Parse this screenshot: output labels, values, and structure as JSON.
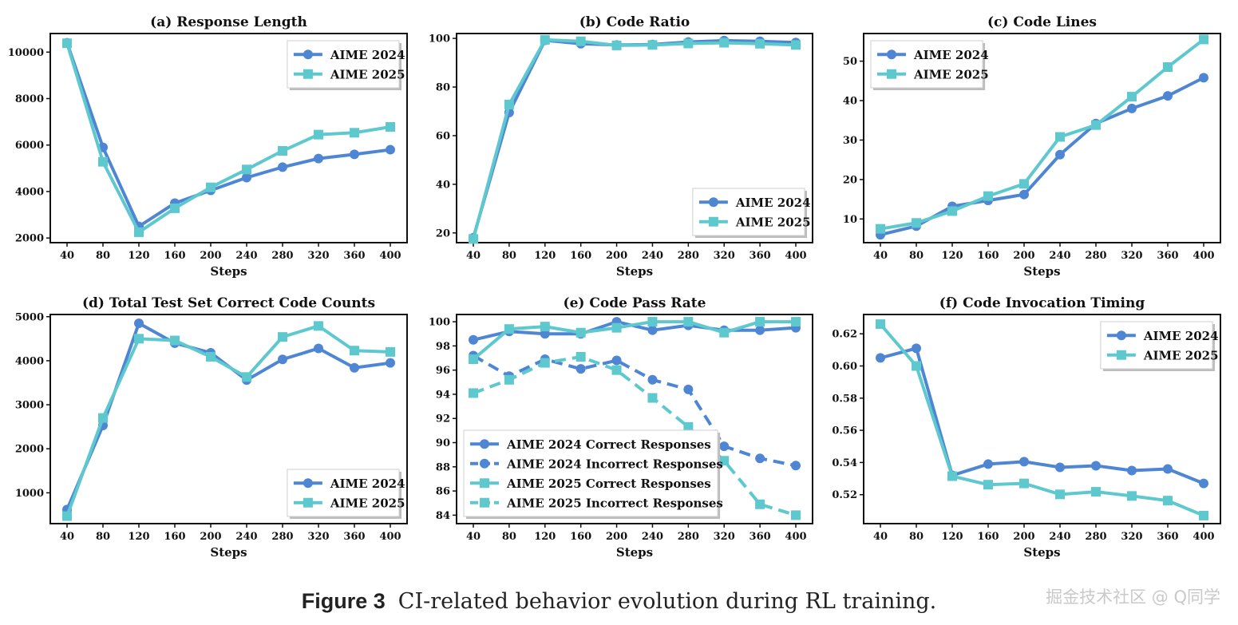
{
  "colors": {
    "aime2024": "#4f86d4",
    "aime2025": "#5ec8cf"
  },
  "caption": {
    "label": "Figure 3",
    "text": "CI-related behavior evolution during RL training."
  },
  "watermark": "掘金技术社区 @ Q同学",
  "chart_data": [
    {
      "type": "line",
      "title": "(a) Response Length",
      "xlabel": "Steps",
      "ylabel": "",
      "x": [
        40,
        80,
        120,
        160,
        200,
        240,
        280,
        320,
        360,
        400
      ],
      "ylim": [
        1800,
        10800
      ],
      "yticks": [
        2000,
        4000,
        6000,
        8000,
        10000
      ],
      "ytick_labels": [
        "2000",
        "4000",
        "6000",
        "8000",
        "10000"
      ],
      "legend": "top-right",
      "series": [
        {
          "name": "AIME 2024",
          "marker": "circle",
          "dash": "solid",
          "values": [
            10400,
            5900,
            2500,
            3500,
            4050,
            4600,
            5050,
            5420,
            5600,
            5800
          ]
        },
        {
          "name": "AIME 2025",
          "marker": "square",
          "dash": "solid",
          "values": [
            10380,
            5280,
            2250,
            3280,
            4180,
            4950,
            5750,
            6450,
            6530,
            6780
          ]
        }
      ]
    },
    {
      "type": "line",
      "title": "(b) Code Ratio",
      "xlabel": "Steps",
      "ylabel": "",
      "x": [
        40,
        80,
        120,
        160,
        200,
        240,
        280,
        320,
        360,
        400
      ],
      "ylim": [
        16,
        102
      ],
      "yticks": [
        20,
        40,
        60,
        80,
        100
      ],
      "ytick_labels": [
        "20",
        "40",
        "60",
        "80",
        "100"
      ],
      "legend": "bottom-right",
      "series": [
        {
          "name": "AIME 2024",
          "marker": "circle",
          "dash": "solid",
          "values": [
            18,
            69.5,
            99.2,
            97.8,
            97.3,
            97.5,
            98.5,
            99.1,
            98.8,
            98.3
          ]
        },
        {
          "name": "AIME 2025",
          "marker": "square",
          "dash": "solid",
          "values": [
            17.5,
            72.8,
            99.4,
            98.8,
            97.1,
            97.3,
            97.9,
            98.2,
            97.8,
            97.3
          ]
        }
      ]
    },
    {
      "type": "line",
      "title": "(c) Code Lines",
      "xlabel": "Steps",
      "ylabel": "",
      "x": [
        40,
        80,
        120,
        160,
        200,
        240,
        280,
        320,
        360,
        400
      ],
      "ylim": [
        4,
        57
      ],
      "yticks": [
        10,
        20,
        30,
        40,
        50
      ],
      "ytick_labels": [
        "10",
        "20",
        "30",
        "40",
        "50"
      ],
      "legend": "top-left",
      "series": [
        {
          "name": "AIME 2024",
          "marker": "circle",
          "dash": "solid",
          "values": [
            6,
            8.2,
            13.2,
            14.7,
            16.2,
            26.3,
            34.2,
            38,
            41.2,
            45.8
          ]
        },
        {
          "name": "AIME 2025",
          "marker": "square",
          "dash": "solid",
          "values": [
            7.5,
            9,
            12,
            15.8,
            18.9,
            30.8,
            33.8,
            41,
            48.5,
            55.5
          ]
        }
      ]
    },
    {
      "type": "line",
      "title": "(d) Total Test Set Correct Code Counts",
      "xlabel": "Steps",
      "ylabel": "",
      "x": [
        40,
        80,
        120,
        160,
        200,
        240,
        280,
        320,
        360,
        400
      ],
      "ylim": [
        300,
        5050
      ],
      "yticks": [
        1000,
        2000,
        3000,
        4000,
        5000
      ],
      "ytick_labels": [
        "1000",
        "2000",
        "3000",
        "4000",
        "5000"
      ],
      "legend": "bottom-right",
      "series": [
        {
          "name": "AIME 2024",
          "marker": "circle",
          "dash": "solid",
          "values": [
            620,
            2530,
            4850,
            4400,
            4180,
            3560,
            4030,
            4280,
            3840,
            3950
          ]
        },
        {
          "name": "AIME 2025",
          "marker": "square",
          "dash": "solid",
          "values": [
            470,
            2700,
            4500,
            4460,
            4090,
            3630,
            4540,
            4790,
            4230,
            4200
          ]
        }
      ]
    },
    {
      "type": "line",
      "title": "(e) Code Pass Rate",
      "xlabel": "Steps",
      "ylabel": "",
      "x": [
        40,
        80,
        120,
        160,
        200,
        240,
        280,
        320,
        360,
        400
      ],
      "ylim": [
        83.3,
        100.6
      ],
      "yticks": [
        84,
        86,
        88,
        90,
        92,
        94,
        96,
        98,
        100
      ],
      "ytick_labels": [
        "84",
        "86",
        "88",
        "90",
        "92",
        "94",
        "96",
        "98",
        "100"
      ],
      "legend": "bottom-left",
      "series": [
        {
          "name": "AIME 2024 Correct Responses",
          "marker": "circle",
          "dash": "solid",
          "color": "aime2024",
          "values": [
            98.5,
            99.2,
            99,
            99,
            100,
            99.3,
            99.7,
            99.3,
            99.3,
            99.5
          ]
        },
        {
          "name": "AIME 2024 Incorrect Responses",
          "marker": "circle",
          "dash": "dashed",
          "color": "aime2024",
          "values": [
            97.2,
            95.5,
            96.9,
            96.1,
            96.8,
            95.2,
            94.4,
            89.7,
            88.7,
            88.1
          ]
        },
        {
          "name": "AIME 2025 Correct Responses",
          "marker": "square",
          "dash": "solid",
          "color": "aime2025",
          "values": [
            96.9,
            99.4,
            99.6,
            99.1,
            99.5,
            100,
            100,
            99.1,
            100,
            100
          ]
        },
        {
          "name": "AIME 2025 Incorrect Responses",
          "marker": "square",
          "dash": "dashed",
          "color": "aime2025",
          "values": [
            94.1,
            95.2,
            96.6,
            97.1,
            96,
            93.7,
            91.3,
            88.5,
            84.9,
            84
          ]
        }
      ]
    },
    {
      "type": "line",
      "title": "(f) Code Invocation Timing",
      "xlabel": "Steps",
      "ylabel": "",
      "x": [
        40,
        80,
        120,
        160,
        200,
        240,
        280,
        320,
        360,
        400
      ],
      "ylim": [
        0.502,
        0.632
      ],
      "yticks": [
        0.52,
        0.54,
        0.56,
        0.58,
        0.6,
        0.62
      ],
      "ytick_labels": [
        "0.52",
        "0.54",
        "0.56",
        "0.58",
        "0.60",
        "0.62"
      ],
      "legend": "top-right",
      "series": [
        {
          "name": "AIME 2024",
          "marker": "circle",
          "dash": "solid",
          "values": [
            0.605,
            0.611,
            0.532,
            0.539,
            0.5405,
            0.537,
            0.538,
            0.535,
            0.536,
            0.527
          ]
        },
        {
          "name": "AIME 2025",
          "marker": "square",
          "dash": "solid",
          "values": [
            0.626,
            0.6,
            0.5315,
            0.5262,
            0.527,
            0.5202,
            0.5218,
            0.5192,
            0.5163,
            0.507
          ]
        }
      ]
    }
  ]
}
